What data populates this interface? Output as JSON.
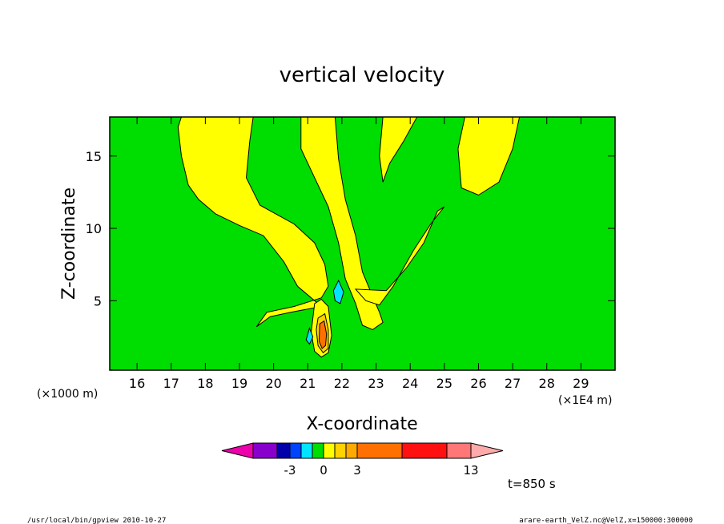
{
  "chart_data": {
    "type": "heatmap",
    "title": "vertical velocity",
    "xlabel": "X-coordinate",
    "ylabel": "Z-coordinate",
    "x_unit": "(×1E4 m)",
    "y_unit": "(×1000 m)",
    "xlim": [
      15.2,
      30.0
    ],
    "ylim": [
      0.2,
      17.7
    ],
    "x_ticks": [
      "16",
      "17",
      "18",
      "19",
      "20",
      "21",
      "22",
      "23",
      "24",
      "25",
      "26",
      "27",
      "28",
      "29"
    ],
    "y_ticks": [
      "5",
      "10",
      "15"
    ],
    "background_color": "#00dd00",
    "positive_color": "#ffff00",
    "strong_colors": [
      "#ffd200",
      "#ff7000"
    ],
    "negative_color": "#00e5ff",
    "regions": [
      {
        "level": "positive",
        "points": [
          [
            17.3,
            17.7
          ],
          [
            17.2,
            17
          ],
          [
            17.3,
            15
          ],
          [
            17.5,
            13
          ],
          [
            17.8,
            12
          ],
          [
            18.3,
            11
          ],
          [
            19,
            10.2
          ],
          [
            19.7,
            9.5
          ],
          [
            20.3,
            7.7
          ],
          [
            20.7,
            6
          ],
          [
            21.2,
            5
          ],
          [
            21.4,
            4.6
          ],
          [
            20.5,
            4.2
          ],
          [
            19.9,
            3.9
          ],
          [
            19.5,
            3.2
          ],
          [
            19.8,
            4.2
          ],
          [
            20.6,
            4.6
          ],
          [
            21.4,
            5.2
          ],
          [
            21.6,
            6
          ],
          [
            21.5,
            7.5
          ],
          [
            21.2,
            9
          ],
          [
            20.6,
            10.3
          ],
          [
            19.6,
            11.6
          ],
          [
            19.2,
            13.5
          ],
          [
            19.3,
            16
          ],
          [
            19.4,
            17.7
          ]
        ]
      },
      {
        "level": "positive",
        "points": [
          [
            20.8,
            17.7
          ],
          [
            20.8,
            15.5
          ],
          [
            21.2,
            13.5
          ],
          [
            21.6,
            11.5
          ],
          [
            21.9,
            9
          ],
          [
            22.1,
            6.5
          ],
          [
            22.4,
            4.8
          ],
          [
            22.6,
            3.3
          ],
          [
            22.9,
            3
          ],
          [
            23.2,
            3.5
          ],
          [
            23.1,
            4.2
          ],
          [
            22.9,
            5.3
          ],
          [
            22.6,
            7
          ],
          [
            22.4,
            9.5
          ],
          [
            22.1,
            12
          ],
          [
            21.9,
            14.8
          ],
          [
            21.8,
            17.7
          ]
        ]
      },
      {
        "level": "positive",
        "points": [
          [
            22.4,
            5.8
          ],
          [
            22.7,
            5
          ],
          [
            23.1,
            4.7
          ],
          [
            23.5,
            6
          ],
          [
            24.1,
            8.5
          ],
          [
            24.6,
            10.3
          ],
          [
            25,
            11.5
          ],
          [
            24.8,
            11.2
          ],
          [
            24.4,
            9
          ],
          [
            23.9,
            7.3
          ],
          [
            23.3,
            5.7
          ]
        ]
      },
      {
        "level": "positive",
        "points": [
          [
            23.2,
            17.7
          ],
          [
            23.1,
            15
          ],
          [
            23.2,
            13.2
          ],
          [
            23.4,
            14.5
          ],
          [
            23.8,
            16
          ],
          [
            24.2,
            17.7
          ]
        ]
      },
      {
        "level": "positive",
        "points": [
          [
            25.6,
            17.7
          ],
          [
            25.4,
            15.5
          ],
          [
            25.5,
            12.8
          ],
          [
            26,
            12.3
          ],
          [
            26.6,
            13.2
          ],
          [
            27,
            15.5
          ],
          [
            27.2,
            17.7
          ]
        ]
      },
      {
        "level": "positive",
        "points": [
          [
            21.2,
            4.8
          ],
          [
            21.4,
            5.1
          ],
          [
            21.6,
            4.6
          ],
          [
            21.7,
            2.6
          ],
          [
            21.6,
            1.4
          ],
          [
            21.4,
            1.1
          ],
          [
            21.2,
            1.5
          ],
          [
            21.1,
            2.8
          ]
        ]
      },
      {
        "level": "strong1",
        "points": [
          [
            21.3,
            3.8
          ],
          [
            21.5,
            4.1
          ],
          [
            21.6,
            3
          ],
          [
            21.6,
            1.7
          ],
          [
            21.45,
            1.4
          ],
          [
            21.3,
            1.9
          ],
          [
            21.25,
            3
          ]
        ]
      },
      {
        "level": "strong2",
        "points": [
          [
            21.35,
            3.4
          ],
          [
            21.48,
            3.6
          ],
          [
            21.55,
            2.7
          ],
          [
            21.52,
            1.9
          ],
          [
            21.42,
            1.7
          ],
          [
            21.33,
            2.2
          ]
        ]
      },
      {
        "level": "negative",
        "points": [
          [
            21.75,
            5.7
          ],
          [
            21.9,
            6.4
          ],
          [
            22.05,
            5.6
          ],
          [
            21.95,
            4.8
          ],
          [
            21.8,
            5
          ]
        ]
      },
      {
        "level": "negative",
        "points": [
          [
            20.95,
            2.3
          ],
          [
            21.05,
            3.1
          ],
          [
            21.15,
            2.5
          ],
          [
            21.05,
            2
          ]
        ]
      }
    ],
    "colorbar": {
      "colors": [
        "#ee00aa",
        "#8800cc",
        "#0000aa",
        "#0044ff",
        "#00e5ff",
        "#00dd00",
        "#ffff00",
        "#ffd200",
        "#ffaa00",
        "#ff7000",
        "#ff1111",
        "#ff7777",
        "#ffaaaa"
      ],
      "labels": [
        "-3",
        "0",
        "3",
        "13"
      ]
    },
    "annotation": "t=850 s"
  },
  "footer": {
    "left": "/usr/local/bin/gpview   2010-10-27",
    "right": "arare-earth_VelZ.nc@VelZ,x=150000:300000"
  }
}
